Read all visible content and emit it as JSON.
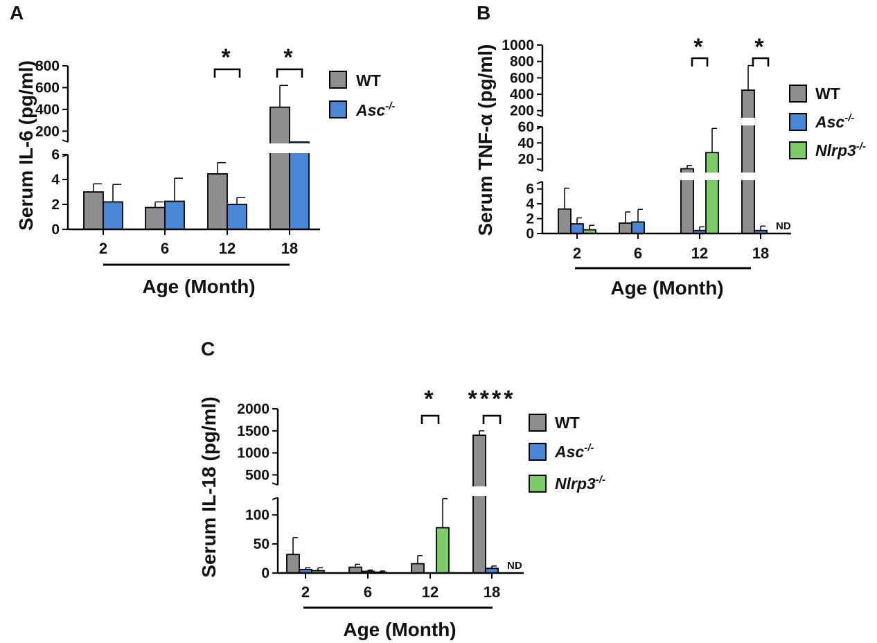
{
  "colors": {
    "WT": "#8e8e90",
    "Asc": "#4a86d8",
    "Nlrp3": "#7ccc68"
  },
  "chart_data": [
    {
      "panel": "A",
      "type": "bar",
      "ylabel": "Serum IL-6 (pg/ml)",
      "xlabel": "Age (Month)",
      "categories": [
        "2",
        "6",
        "12",
        "18"
      ],
      "series": [
        {
          "name": "WT",
          "key": "WT",
          "sup": "",
          "values": [
            3.0,
            1.75,
            4.45,
            420
          ],
          "errors": [
            0.65,
            0.45,
            0.9,
            200
          ]
        },
        {
          "name": "Asc",
          "key": "Asc",
          "sup": "-/-",
          "values": [
            2.2,
            2.25,
            2.0,
            7
          ],
          "errors": [
            1.4,
            1.85,
            0.55,
            0
          ]
        }
      ],
      "segments": [
        {
          "range": [
            0,
            6
          ],
          "ticks": [
            0,
            2,
            4,
            6
          ]
        },
        {
          "range": [
            100,
            800
          ],
          "ticks": [
            200,
            400,
            600,
            800
          ]
        }
      ],
      "significance": [
        {
          "category": "12",
          "label": "*"
        },
        {
          "category": "18",
          "label": "*"
        }
      ]
    },
    {
      "panel": "B",
      "type": "bar",
      "ylabel": "Serum TNF-α (pg/ml)",
      "xlabel": "Age (Month)",
      "categories": [
        "2",
        "6",
        "12",
        "18"
      ],
      "series": [
        {
          "name": "WT",
          "key": "WT",
          "sup": "",
          "values": [
            3.3,
            1.4,
            8,
            450
          ],
          "errors": [
            2.8,
            1.5,
            4,
            300
          ]
        },
        {
          "name": "Asc",
          "key": "Asc",
          "sup": "-/-",
          "values": [
            1.3,
            1.55,
            0.4,
            0.4
          ],
          "errors": [
            0.8,
            1.7,
            0.5,
            0.6
          ]
        },
        {
          "name": "Nlrp3",
          "key": "Nlrp3",
          "sup": "-/-",
          "values": [
            0.5,
            null,
            28,
            null
          ],
          "errors": [
            0.6,
            null,
            30,
            null
          ]
        }
      ],
      "segments": [
        {
          "range": [
            0,
            7
          ],
          "ticks": [
            0,
            2,
            4,
            6
          ]
        },
        {
          "range": [
            5,
            60
          ],
          "ticks": [
            20,
            40,
            60
          ]
        },
        {
          "range": [
            130,
            1000
          ],
          "ticks": [
            200,
            400,
            600,
            800,
            1000
          ]
        }
      ],
      "significance": [
        {
          "category": "12",
          "label": "*"
        },
        {
          "category": "18",
          "label": "*"
        }
      ],
      "nd_label": "ND",
      "nd_category": "18"
    },
    {
      "panel": "C",
      "type": "bar",
      "ylabel": "Serum IL-18 (pg/ml)",
      "xlabel": "Age (Month)",
      "categories": [
        "2",
        "6",
        "12",
        "18"
      ],
      "series": [
        {
          "name": "WT",
          "key": "WT",
          "sup": "",
          "values": [
            32,
            10,
            16,
            1400
          ],
          "errors": [
            29,
            5,
            14,
            100
          ]
        },
        {
          "name": "Asc",
          "key": "Asc",
          "sup": "-/-",
          "values": [
            6,
            3,
            0,
            8
          ],
          "errors": [
            3,
            2,
            0,
            4
          ]
        },
        {
          "name": "Nlrp3",
          "key": "Nlrp3",
          "sup": "-/-",
          "values": [
            4,
            1.5,
            78,
            null
          ],
          "errors": [
            5,
            2,
            50,
            null
          ]
        }
      ],
      "segments": [
        {
          "range": [
            0,
            130
          ],
          "ticks": [
            0,
            50,
            100
          ]
        },
        {
          "range": [
            270,
            2000
          ],
          "ticks": [
            500,
            1000,
            1500,
            2000
          ]
        }
      ],
      "significance": [
        {
          "category": "12",
          "label": "*"
        },
        {
          "category": "18",
          "label": "****"
        }
      ],
      "nd_label": "ND",
      "nd_category": "18"
    }
  ]
}
